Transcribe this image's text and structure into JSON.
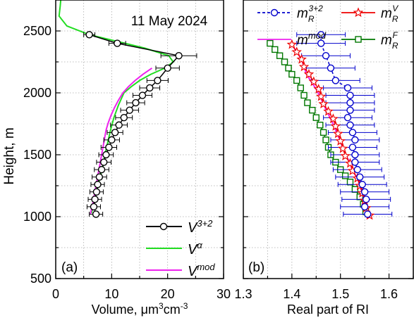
{
  "figure": {
    "y_axis_label": "Height, m",
    "y_ticks": [
      500,
      1000,
      1500,
      2000,
      2500
    ]
  },
  "chart_data": [
    {
      "type": "line",
      "panel_label": "(a)",
      "annotation": "11 May 2024",
      "xlabel_parts": [
        "Volume, ",
        "μm",
        "3",
        "cm",
        "-3"
      ],
      "ylabel": "Height, m",
      "xlim": [
        0,
        30
      ],
      "ylim": [
        500,
        2750
      ],
      "xticks": [
        0,
        10,
        20,
        30
      ],
      "yticks": [
        500,
        1000,
        1500,
        2000,
        2500
      ],
      "grid": true,
      "legend_position": "bottom-right",
      "colors": {
        "v32": "#000000",
        "valpha": "#22dd22",
        "vmod": "#ee22ee"
      },
      "series": [
        {
          "key": "v32",
          "label_base": "V",
          "label_sup": "3+2",
          "x": [
            7.2,
            6.8,
            7.0,
            7.3,
            7.5,
            7.8,
            8.2,
            8.6,
            9.0,
            9.5,
            10.0,
            10.6,
            11.3,
            12.2,
            13.2,
            14.3,
            15.5,
            16.8,
            18.2,
            20.0,
            22.0,
            11.0,
            6.0
          ],
          "y": [
            1020,
            1080,
            1140,
            1200,
            1260,
            1320,
            1380,
            1440,
            1500,
            1560,
            1620,
            1680,
            1740,
            1800,
            1860,
            1920,
            1980,
            2040,
            2100,
            2200,
            2300,
            2400,
            2470
          ],
          "xerr": [
            1.2,
            1.2,
            1.2,
            1.2,
            1.2,
            1.3,
            1.3,
            1.3,
            1.3,
            1.4,
            1.4,
            1.4,
            1.5,
            1.5,
            1.6,
            1.6,
            1.7,
            1.8,
            1.9,
            2.1,
            3.2,
            1.5,
            1.0
          ]
        },
        {
          "key": "valpha",
          "label_base": "V",
          "label_sup": "α",
          "x": [
            6.4,
            6.8,
            7.3,
            7.8,
            8.4,
            8.8,
            9.3,
            9.8,
            10.4,
            11.2,
            12.2,
            13.5,
            15.0,
            17.0,
            19.5,
            21.0,
            20.2,
            16.0,
            11.5,
            6.0,
            2.0,
            0.6,
            0.8,
            0.9
          ],
          "y": [
            1030,
            1100,
            1200,
            1300,
            1400,
            1500,
            1600,
            1700,
            1800,
            1900,
            2000,
            2050,
            2100,
            2150,
            2200,
            2250,
            2300,
            2360,
            2410,
            2470,
            2540,
            2620,
            2700,
            2750
          ]
        },
        {
          "key": "vmod",
          "label_base": "V",
          "label_sup": "mod",
          "x": [
            6.2,
            6.6,
            7.0,
            7.4,
            7.8,
            8.2,
            8.6,
            9.0,
            9.4,
            9.9,
            10.5,
            11.2,
            12.0,
            13.0,
            14.2,
            15.6,
            17.2
          ],
          "y": [
            1020,
            1100,
            1200,
            1300,
            1400,
            1500,
            1600,
            1700,
            1760,
            1820,
            1880,
            1940,
            2000,
            2050,
            2100,
            2150,
            2200
          ]
        }
      ]
    },
    {
      "type": "line",
      "panel_label": "(b)",
      "xlabel": "Real part of RI",
      "xlim": [
        1.3,
        1.65
      ],
      "ylim": [
        500,
        2750
      ],
      "xticks": [
        1.3,
        1.4,
        1.5,
        1.6
      ],
      "xtick_labels": [
        "1.3",
        "1.4",
        "1.5",
        "1.6"
      ],
      "grid": true,
      "legend_position": "top",
      "colors": {
        "m32": "#0000cc",
        "mV": "#ee0000",
        "mmod": "#ee22ee",
        "mF": "#007700"
      },
      "series": [
        {
          "key": "m32",
          "label_base": "m",
          "label_sub": "R",
          "label_sup": "3+2",
          "x": [
            1.556,
            1.55,
            1.553,
            1.55,
            1.545,
            1.54,
            1.535,
            1.53,
            1.53,
            1.525,
            1.53,
            1.525,
            1.52,
            1.515,
            1.52,
            1.52,
            1.52,
            1.515,
            1.49,
            1.48,
            1.47,
            1.46,
            1.46
          ],
          "y": [
            1020,
            1080,
            1140,
            1200,
            1260,
            1320,
            1380,
            1440,
            1500,
            1560,
            1620,
            1680,
            1740,
            1800,
            1860,
            1920,
            1980,
            2040,
            2100,
            2200,
            2300,
            2400,
            2470
          ],
          "xerr": [
            0.05,
            0.05,
            0.05,
            0.05,
            0.05,
            0.05,
            0.05,
            0.05,
            0.05,
            0.05,
            0.05,
            0.05,
            0.05,
            0.05,
            0.05,
            0.05,
            0.05,
            0.05,
            0.05,
            0.05,
            0.05,
            0.05,
            0.05
          ]
        },
        {
          "key": "mV",
          "label_base": "m",
          "label_sub": "R",
          "label_sup": "V",
          "x": [
            1.56,
            1.553,
            1.55,
            1.545,
            1.54,
            1.535,
            1.525,
            1.52,
            1.51,
            1.505,
            1.5,
            1.495,
            1.49,
            1.485,
            1.475,
            1.465,
            1.46,
            1.455,
            1.445,
            1.435,
            1.425,
            1.42,
            1.41,
            1.4
          ],
          "y": [
            1010,
            1070,
            1130,
            1190,
            1250,
            1310,
            1370,
            1430,
            1490,
            1550,
            1610,
            1670,
            1730,
            1790,
            1850,
            1910,
            1970,
            2030,
            2090,
            2150,
            2210,
            2270,
            2330,
            2390
          ]
        },
        {
          "key": "mmod",
          "label_base": "m",
          "label_sup": "mod",
          "x": [
            1.56,
            1.553,
            1.55,
            1.545,
            1.54,
            1.535,
            1.525,
            1.52,
            1.512,
            1.505,
            1.5,
            1.493,
            1.487,
            1.48,
            1.472,
            1.465,
            1.458,
            1.45,
            1.44,
            1.43,
            1.425,
            1.42,
            1.41,
            1.4
          ],
          "y": [
            1010,
            1070,
            1130,
            1190,
            1250,
            1310,
            1370,
            1430,
            1490,
            1550,
            1610,
            1670,
            1730,
            1790,
            1850,
            1910,
            1970,
            2030,
            2090,
            2150,
            2210,
            2270,
            2330,
            2390
          ]
        },
        {
          "key": "mF",
          "label_base": "m",
          "label_sub": "R",
          "label_sup": "F",
          "x": [
            1.552,
            1.547,
            1.54,
            1.53,
            1.52,
            1.51,
            1.5,
            1.49,
            1.48,
            1.475,
            1.47,
            1.465,
            1.458,
            1.45,
            1.442,
            1.432,
            1.425,
            1.418,
            1.41,
            1.4,
            1.393,
            1.385,
            1.375,
            1.365,
            1.355
          ],
          "y": [
            1040,
            1100,
            1160,
            1220,
            1280,
            1330,
            1380,
            1440,
            1500,
            1560,
            1620,
            1680,
            1740,
            1800,
            1860,
            1920,
            1980,
            2040,
            2100,
            2150,
            2200,
            2250,
            2300,
            2350,
            2400
          ]
        }
      ]
    }
  ]
}
